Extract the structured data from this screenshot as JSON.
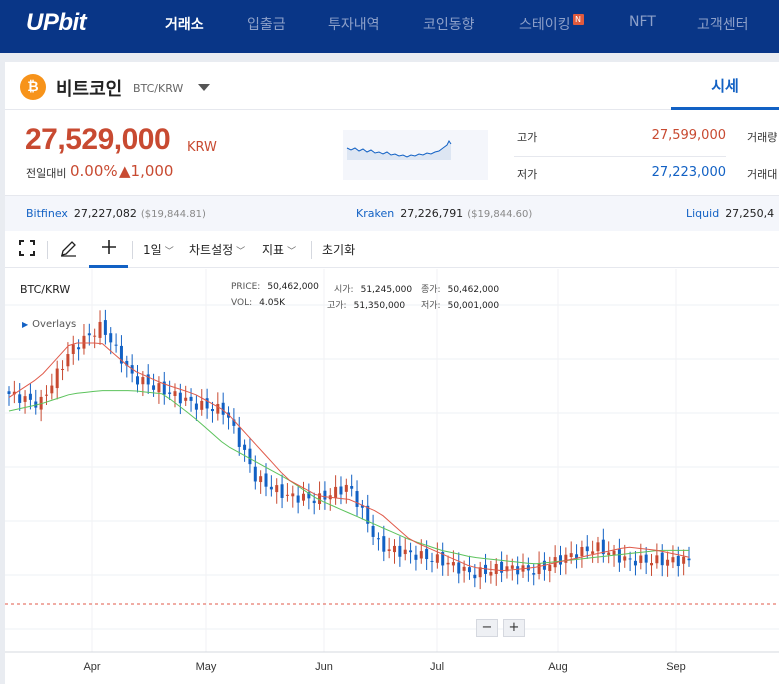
{
  "app": {
    "logo": "UPbit"
  },
  "nav": {
    "items": [
      {
        "label": "거래소",
        "active": true
      },
      {
        "label": "입출금"
      },
      {
        "label": "투자내역"
      },
      {
        "label": "코인동향"
      },
      {
        "label": "스테이킹",
        "badge": "N"
      },
      {
        "label": "NFT"
      },
      {
        "label": "고객센터"
      }
    ]
  },
  "coin": {
    "icon": "bitcoin-icon",
    "icon_glyph": "₿",
    "name": "비트코인",
    "pair": "BTC/KRW"
  },
  "tab": {
    "sise": "시세"
  },
  "quote": {
    "price": "27,529,000",
    "unit": "KRW",
    "change_label": "전일대비",
    "change_pct": "0.00%",
    "change_amt": "▲1,000"
  },
  "stats": {
    "high_label": "고가",
    "high": "27,599,000",
    "low_label": "저가",
    "low": "27,223,000",
    "vol_label": "거래량",
    "value_label": "거래대"
  },
  "exchanges": [
    {
      "name": "Bitfinex",
      "krw": "27,227,082",
      "usd": "($19,844.81)"
    },
    {
      "name": "Kraken",
      "krw": "27,226,791",
      "usd": "($19,844.60)"
    },
    {
      "name": "Liquid",
      "krw": "27,250,4"
    }
  ],
  "toolbar": {
    "interval": "1일",
    "chart_settings": "차트설정",
    "indicators": "지표",
    "reset": "초기화"
  },
  "chart": {
    "title": "BTC/KRW",
    "overlays": "Overlays",
    "price_label": "PRICE:",
    "price": "50,462,000",
    "vol_label": "VOL:",
    "vol": "4.05K",
    "open_label": "시가:",
    "open": "51,245,000",
    "high_label": "고가:",
    "high": "51,350,000",
    "close_label": "종가:",
    "close": "50,462,000",
    "low_label": "저가:",
    "low": "50,001,000",
    "zoom_out": "−",
    "zoom_in": "+",
    "colors": {
      "up": "#c84a31",
      "down": "#1261c4",
      "ma_short": "#e05a4a",
      "ma_long": "#5cc35c"
    }
  },
  "chart_data": {
    "type": "line",
    "title": "BTC/KRW",
    "x_ticks": [
      "Apr",
      "May",
      "Jun",
      "Jul",
      "Aug",
      "Sep"
    ],
    "series": [
      {
        "values": [
          75,
          72,
          88,
          95,
          80,
          76,
          72,
          70,
          50,
          45,
          44,
          48,
          30,
          28,
          26,
          22,
          24,
          23,
          27,
          30,
          26,
          26,
          26
        ]
      },
      {
        "values": [
          74,
          80,
          90,
          90,
          82,
          78,
          75,
          70,
          60,
          50,
          45,
          44,
          40,
          32,
          28,
          24,
          23,
          24,
          26,
          28,
          30,
          29,
          27
        ]
      },
      {
        "values": [
          70,
          72,
          75,
          76,
          76,
          75,
          68,
          60,
          55,
          50,
          44,
          40,
          36,
          32,
          29,
          27,
          26,
          25,
          26,
          27,
          28,
          29,
          29
        ]
      }
    ]
  }
}
